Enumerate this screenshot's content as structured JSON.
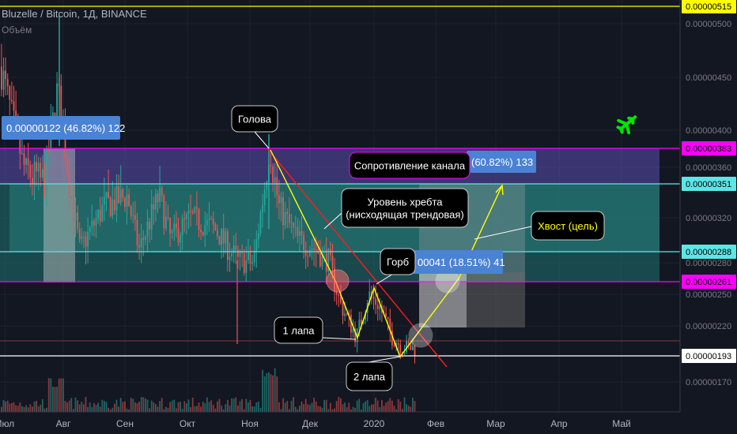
{
  "header": {
    "symbol": "Bluzelle / Bitcoin, 1Д, BINANCE",
    "volume_label": "Объём"
  },
  "chart_data": {
    "type": "candlestick",
    "x_tick_labels": [
      "Июл",
      "Авг",
      "Сен",
      "Окт",
      "Ноя",
      "Дек",
      "2020",
      "Фев",
      "Мар",
      "Апр",
      "Май"
    ],
    "y_tick_labels": [
      "0.00000500",
      "0.00000450",
      "0.00000400",
      "0.00000360",
      "0.00000320",
      "0.00000280",
      "0.00000250",
      "0.00000220",
      "0.00000170"
    ],
    "y_range": [
      1.4e-06,
      5.2e-06
    ],
    "price_levels": [
      {
        "value": 5.15e-06,
        "label": "0.00000515",
        "color": "#ffff00"
      },
      {
        "value": 3.83e-06,
        "label": "0.00000383",
        "color": "#ff00ff"
      },
      {
        "value": 3.51e-06,
        "label": "0.00000351",
        "color": "#5ee6e6"
      },
      {
        "value": 2.88e-06,
        "label": "0.00000288",
        "color": "#5ee6e6"
      },
      {
        "value": 2.61e-06,
        "label": "0.00000261",
        "color": "#ff00ff"
      },
      {
        "value": 1.93e-06,
        "label": "0.00000193",
        "color": "#ffffff"
      }
    ],
    "range_channel": {
      "top": 3.83e-06,
      "mid_top": 3.51e-06,
      "mid_bottom": 2.88e-06,
      "bottom": 2.61e-06
    },
    "measurements": [
      {
        "label": "0.00000122 (46.82%) 122"
      },
      {
        "label": "(60.82%) 133"
      },
      {
        "label": "00041 (18.51%) 41"
      }
    ],
    "annotations": [
      {
        "id": "head",
        "text": "Голова"
      },
      {
        "id": "resistance",
        "text": "Сопротивление канала"
      },
      {
        "id": "ridge",
        "text": "Уровень хребта\n(нисходящая трендовая)"
      },
      {
        "id": "hump",
        "text": "Горб"
      },
      {
        "id": "tail",
        "text": "Хвост (цель)"
      },
      {
        "id": "leg1",
        "text": "1 лапа"
      },
      {
        "id": "leg2",
        "text": "2 лапа"
      }
    ],
    "colors": {
      "up": "#26a69a",
      "down": "#ef5350",
      "background": "#131722",
      "grid": "#1e222d"
    }
  }
}
